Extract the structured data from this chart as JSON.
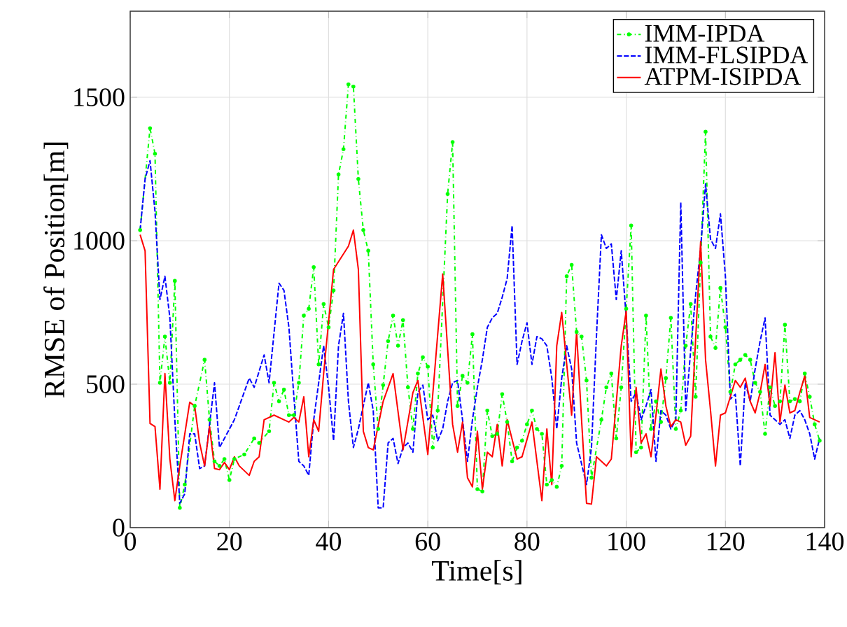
{
  "chart_data": {
    "type": "line",
    "xlabel": "Time[s]",
    "ylabel": "RMSE of Position[m]",
    "xlim": [
      0,
      140
    ],
    "ylim": [
      0,
      1800
    ],
    "xticks": [
      0,
      20,
      40,
      60,
      80,
      100,
      120,
      140
    ],
    "yticks": [
      0,
      500,
      1000,
      1500
    ],
    "grid": true,
    "legend": "top right",
    "series": [
      {
        "name": "IMM-IPDA",
        "color": "#00ff00",
        "line_style": "dashdotted",
        "marker": "circle",
        "x": [
          2,
          4,
          5,
          6,
          7,
          8,
          9,
          10,
          11,
          13,
          15,
          16,
          17,
          18,
          19,
          20,
          21,
          23,
          25,
          26,
          28,
          29,
          30,
          31,
          32,
          33,
          34,
          35,
          36,
          37,
          38,
          39,
          40,
          41,
          42,
          43,
          44,
          45,
          46,
          47,
          48,
          49,
          50,
          51,
          52,
          53,
          54,
          55,
          56,
          57,
          58,
          59,
          60,
          61,
          62,
          64,
          65,
          66,
          67,
          68,
          69,
          70,
          71,
          72,
          73,
          74,
          75,
          76,
          77,
          78,
          79,
          80,
          81,
          82,
          83,
          84,
          85,
          86,
          87,
          88,
          89,
          90,
          91,
          92,
          93,
          95,
          96,
          97,
          98,
          99,
          100,
          101,
          102,
          103,
          104,
          105,
          106,
          107,
          108,
          109,
          110,
          111,
          112,
          113,
          114,
          115,
          116,
          117,
          118,
          119,
          120,
          121,
          122,
          123,
          124,
          125,
          126,
          127,
          128,
          129,
          130,
          131,
          132,
          133,
          134,
          135,
          136,
          137,
          138,
          139
        ],
        "values": [
          1037,
          1392,
          1303,
          505,
          666,
          505,
          860,
          69,
          150,
          424,
          585,
          376,
          231,
          215,
          239,
          166,
          239,
          255,
          311,
          295,
          336,
          505,
          440,
          481,
          392,
          392,
          505,
          739,
          763,
          908,
          569,
          779,
          698,
          827,
          1231,
          1319,
          1545,
          1537,
          1215,
          1037,
          965,
          569,
          344,
          497,
          650,
          739,
          634,
          723,
          489,
          344,
          537,
          594,
          561,
          279,
          408,
          1163,
          1344,
          424,
          529,
          505,
          674,
          134,
          126,
          408,
          319,
          327,
          465,
          368,
          231,
          279,
          303,
          360,
          408,
          344,
          327,
          150,
          166,
          142,
          215,
          876,
          916,
          682,
          666,
          513,
          174,
          376,
          489,
          537,
          311,
          489,
          763,
          1053,
          263,
          279,
          739,
          344,
          440,
          368,
          521,
          731,
          344,
          408,
          634,
          779,
          456,
          924,
          1380,
          666,
          626,
          835,
          698,
          473,
          569,
          585,
          602,
          585,
          505,
          473,
          327,
          489,
          424,
          440,
          707,
          440,
          448,
          440,
          537,
          456,
          360,
          303
        ]
      },
      {
        "name": "IMM-FLSIPDA",
        "color": "#0000ff",
        "line_style": "dashed",
        "x": [
          2,
          3,
          4,
          5,
          6,
          7,
          8,
          9,
          10,
          11,
          12,
          13,
          14,
          15,
          16,
          17,
          18,
          19,
          21,
          24,
          25,
          27,
          28,
          30,
          31,
          32,
          33,
          34,
          35,
          36,
          37,
          39,
          40,
          41,
          42,
          43,
          44,
          45,
          46,
          48,
          49,
          50,
          51,
          52,
          53,
          54,
          55,
          56,
          57,
          58,
          59,
          60,
          61,
          62,
          63,
          64,
          65,
          66,
          67,
          68,
          69,
          70,
          71,
          72,
          73,
          74,
          75,
          76,
          77,
          78,
          79,
          80,
          81,
          82,
          83,
          84,
          85,
          86,
          87,
          88,
          89,
          90,
          92,
          93,
          94,
          95,
          96,
          97,
          98,
          99,
          100,
          101,
          102,
          103,
          104,
          105,
          106,
          107,
          108,
          109,
          110,
          111,
          112,
          113,
          114,
          115,
          116,
          117,
          118,
          119,
          120,
          121,
          122,
          123,
          124,
          125,
          126,
          127,
          128,
          129,
          130,
          131,
          132,
          133,
          134,
          135,
          136,
          137,
          138,
          139
        ],
        "values": [
          1037,
          1215,
          1279,
          1102,
          795,
          876,
          731,
          376,
          85,
          118,
          327,
          327,
          206,
          215,
          360,
          505,
          279,
          311,
          376,
          521,
          489,
          602,
          505,
          852,
          827,
          698,
          456,
          231,
          215,
          182,
          376,
          634,
          489,
          303,
          634,
          747,
          440,
          279,
          344,
          505,
          408,
          69,
          69,
          295,
          311,
          223,
          279,
          295,
          263,
          471,
          497,
          376,
          392,
          303,
          344,
          440,
          505,
          513,
          376,
          231,
          376,
          489,
          585,
          698,
          731,
          747,
          803,
          868,
          1053,
          569,
          650,
          714,
          569,
          666,
          658,
          634,
          521,
          344,
          521,
          634,
          553,
          295,
          150,
          279,
          666,
          1021,
          973,
          989,
          795,
          965,
          731,
          440,
          471,
          376,
          424,
          481,
          231,
          408,
          392,
          344,
          376,
          1134,
          408,
          618,
          811,
          973,
          1198,
          1005,
          973,
          1094,
          876,
          448,
          465,
          215,
          505,
          440,
          553,
          650,
          731,
          392,
          376,
          360,
          376,
          311,
          392,
          408,
          376,
          327,
          239,
          311
        ]
      },
      {
        "name": "ATPM-ISIPDA",
        "color": "#ff0000",
        "line_style": "solid",
        "x": [
          2,
          3,
          4,
          5,
          6,
          7,
          8,
          9,
          10,
          12,
          13,
          14,
          15,
          16,
          17,
          18,
          19,
          20,
          21,
          22,
          24,
          25,
          26,
          27,
          29,
          31,
          32,
          33,
          34,
          35,
          36,
          37,
          38,
          39,
          41,
          44,
          45,
          46,
          47,
          48,
          49,
          51,
          53,
          55,
          57,
          58,
          60,
          63,
          65,
          66,
          67,
          68,
          69,
          70,
          71,
          72,
          73,
          74,
          75,
          76,
          78,
          79,
          81,
          83,
          84,
          85,
          86,
          87,
          89,
          90,
          91,
          92,
          93,
          94,
          96,
          97,
          99,
          100,
          101,
          102,
          103,
          104,
          105,
          106,
          107,
          108,
          109,
          110,
          111,
          112,
          113,
          115,
          116,
          117,
          118,
          119,
          120,
          122,
          123,
          124,
          125,
          126,
          127,
          128,
          129,
          130,
          131,
          132,
          133,
          134,
          135,
          136,
          137,
          138,
          139
        ],
        "values": [
          1021,
          965,
          363,
          352,
          134,
          537,
          239,
          94,
          215,
          437,
          424,
          295,
          215,
          352,
          206,
          202,
          227,
          202,
          247,
          215,
          182,
          231,
          247,
          376,
          392,
          376,
          368,
          384,
          368,
          456,
          247,
          376,
          336,
          537,
          900,
          981,
          1037,
          900,
          336,
          279,
          271,
          440,
          537,
          271,
          471,
          513,
          255,
          884,
          360,
          263,
          368,
          174,
          142,
          336,
          134,
          263,
          247,
          360,
          215,
          376,
          239,
          247,
          368,
          94,
          344,
          150,
          634,
          750,
          392,
          682,
          376,
          85,
          82,
          247,
          215,
          239,
          634,
          755,
          247,
          489,
          295,
          327,
          247,
          392,
          553,
          424,
          352,
          376,
          368,
          287,
          319,
          997,
          585,
          408,
          215,
          392,
          400,
          513,
          489,
          521,
          440,
          400,
          471,
          569,
          424,
          610,
          368,
          497,
          400,
          408,
          471,
          529,
          384,
          376,
          368
        ]
      }
    ]
  }
}
